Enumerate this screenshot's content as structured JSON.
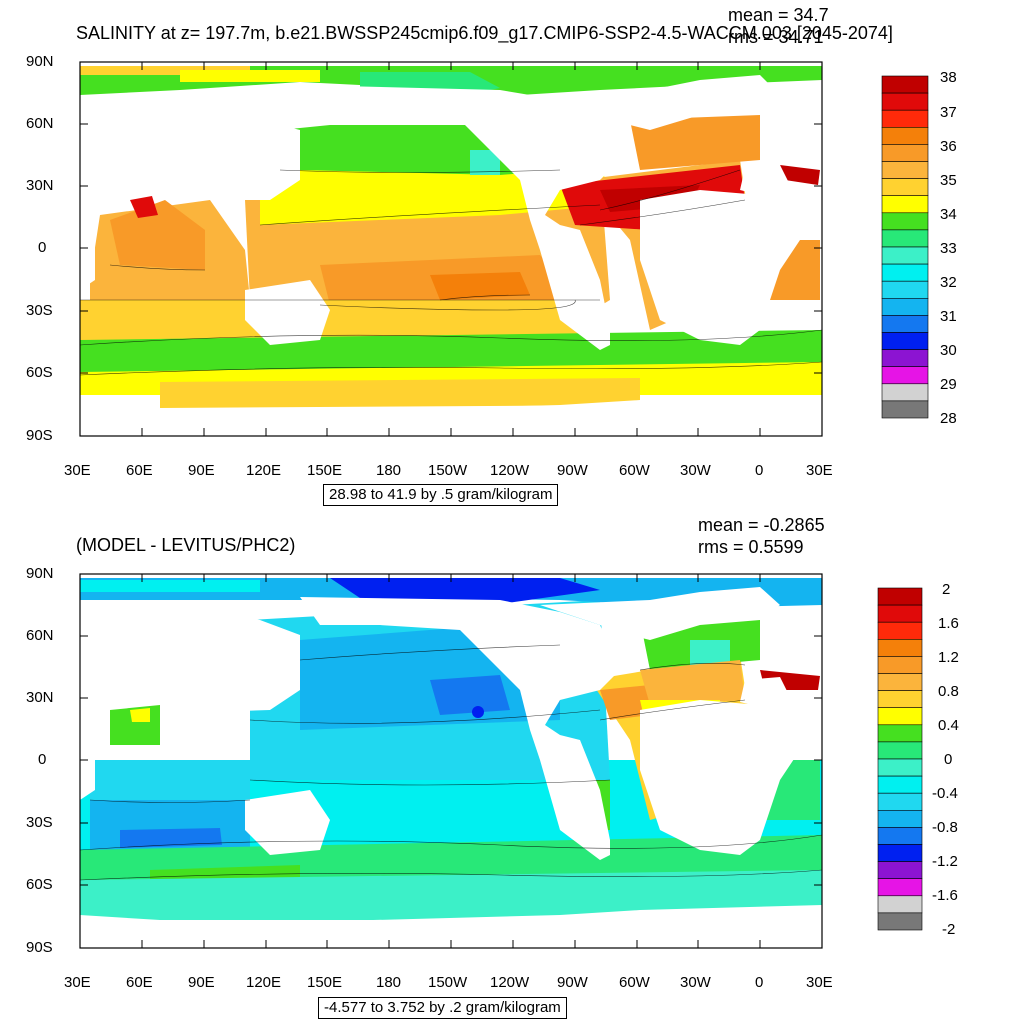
{
  "top_panel": {
    "title": "SALINITY at z= 197.7m, b.e21.BWSSP245cmip6.f09_g17.CMIP6-SSP2-4.5-WACCM.003 [2045-2074]",
    "mean": "mean = 34.7",
    "rms": "rms = 34.71",
    "range_label": "28.98 to 41.9 by .5 gram/kilogram",
    "colorbar": {
      "labels": [
        "38",
        "37",
        "36",
        "35",
        "34",
        "33",
        "32",
        "31",
        "30",
        "29",
        "28"
      ],
      "colors": [
        "#c00000",
        "#e00a0a",
        "#ff2a0a",
        "#f4800a",
        "#f89a28",
        "#fbb43c",
        "#ffd230",
        "#ffff00",
        "#45e020",
        "#28e878",
        "#3cf0c8",
        "#00f0f0",
        "#20d8f0",
        "#14b4f0",
        "#1478f0",
        "#0020f0",
        "#8c14d2",
        "#e614e6",
        "#d2d2d2",
        "#787878"
      ]
    }
  },
  "bottom_panel": {
    "title": "(MODEL - LEVITUS/PHC2)",
    "mean": "mean = -0.2865",
    "rms": "rms = 0.5599",
    "range_label": "-4.577 to 3.752 by .2 gram/kilogram",
    "colorbar": {
      "labels": [
        "2",
        "1.6",
        "1.2",
        "0.8",
        "0.4",
        "0",
        "-0.4",
        "-0.8",
        "-1.2",
        "-1.6",
        "-2"
      ],
      "colors": [
        "#c00000",
        "#e00a0a",
        "#ff2a0a",
        "#f4800a",
        "#f89a28",
        "#fbb43c",
        "#ffd230",
        "#ffff00",
        "#45e020",
        "#28e878",
        "#3cf0c8",
        "#00f0f0",
        "#20d8f0",
        "#14b4f0",
        "#1478f0",
        "#0020f0",
        "#8c14d2",
        "#e614e6",
        "#d2d2d2",
        "#787878"
      ]
    }
  },
  "axes": {
    "lat_labels": [
      "90N",
      "60N",
      "30N",
      "0",
      "30S",
      "60S",
      "90S"
    ],
    "lon_labels": [
      "30E",
      "60E",
      "90E",
      "120E",
      "150E",
      "180",
      "150W",
      "120W",
      "90W",
      "60W",
      "30W",
      "0",
      "30E"
    ]
  }
}
